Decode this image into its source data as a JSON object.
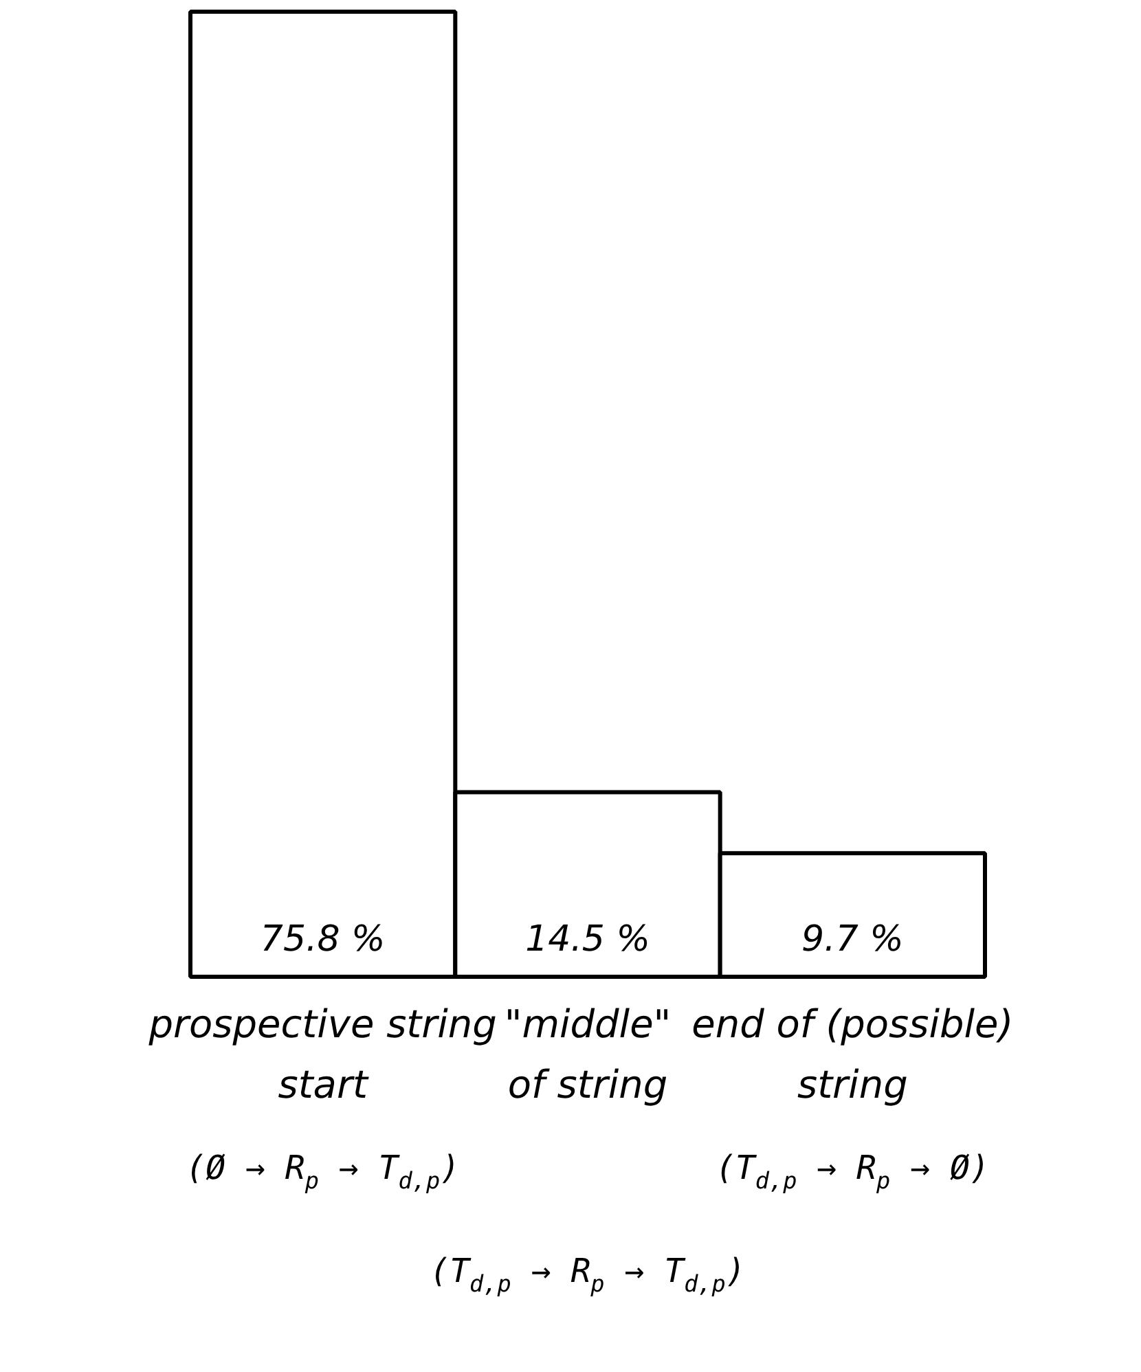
{
  "chart_data": {
    "type": "bar",
    "categories": [
      "prospective string\nstart",
      "\"middle\"\nof string",
      "end of (possible)\nstring"
    ],
    "values": [
      75.8,
      14.5,
      9.7
    ],
    "value_labels": [
      "75.8 %",
      "14.5 %",
      "9.7 %"
    ],
    "color": "#ffffff",
    "annotations": [
      "(Ø → R$_{p}$ → T$_{d,p}$)",
      "(T$_{d,p}$ → R$_{p}$ → T$_{d,p}$)",
      "(T$_{d,p}$ → R$_{p}$ → Ø)"
    ]
  }
}
